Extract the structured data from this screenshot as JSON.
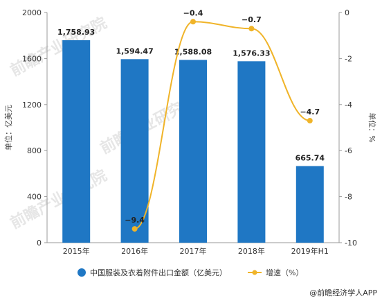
{
  "chart_data": {
    "type": "bar",
    "categories": [
      "2015年",
      "2016年",
      "2017年",
      "2018年",
      "2019年H1"
    ],
    "series": [
      {
        "name": "中国服装及衣着附件出口金额（亿美元）",
        "type": "bar",
        "axis": "left",
        "color": "#1f77c4",
        "values": [
          1758.93,
          1594.47,
          1588.08,
          1576.33,
          665.74
        ],
        "labels": [
          "1,758.93",
          "1,594.47",
          "1,588.08",
          "1,576.33",
          "665.74"
        ]
      },
      {
        "name": "增速（%）",
        "type": "line",
        "axis": "right",
        "color": "#f0b429",
        "values": [
          null,
          -9.4,
          -0.4,
          -0.7,
          -4.7
        ],
        "labels": [
          "",
          "−9.4",
          "−0.4",
          "−0.7",
          "−4.7"
        ]
      }
    ],
    "y_left": {
      "label": "单位：亿美元",
      "ylim": [
        0,
        2000
      ],
      "ticks": [
        0,
        400,
        800,
        1200,
        1600,
        2000
      ]
    },
    "y_right": {
      "label": "单位：%",
      "ylim": [
        -10,
        0
      ],
      "ticks": [
        0,
        -2,
        -4,
        -6,
        -8,
        -10
      ]
    },
    "legend_position": "bottom",
    "grid": false
  },
  "watermark": "前瞻产业研究院",
  "source": "@前瞻经济学人APP"
}
